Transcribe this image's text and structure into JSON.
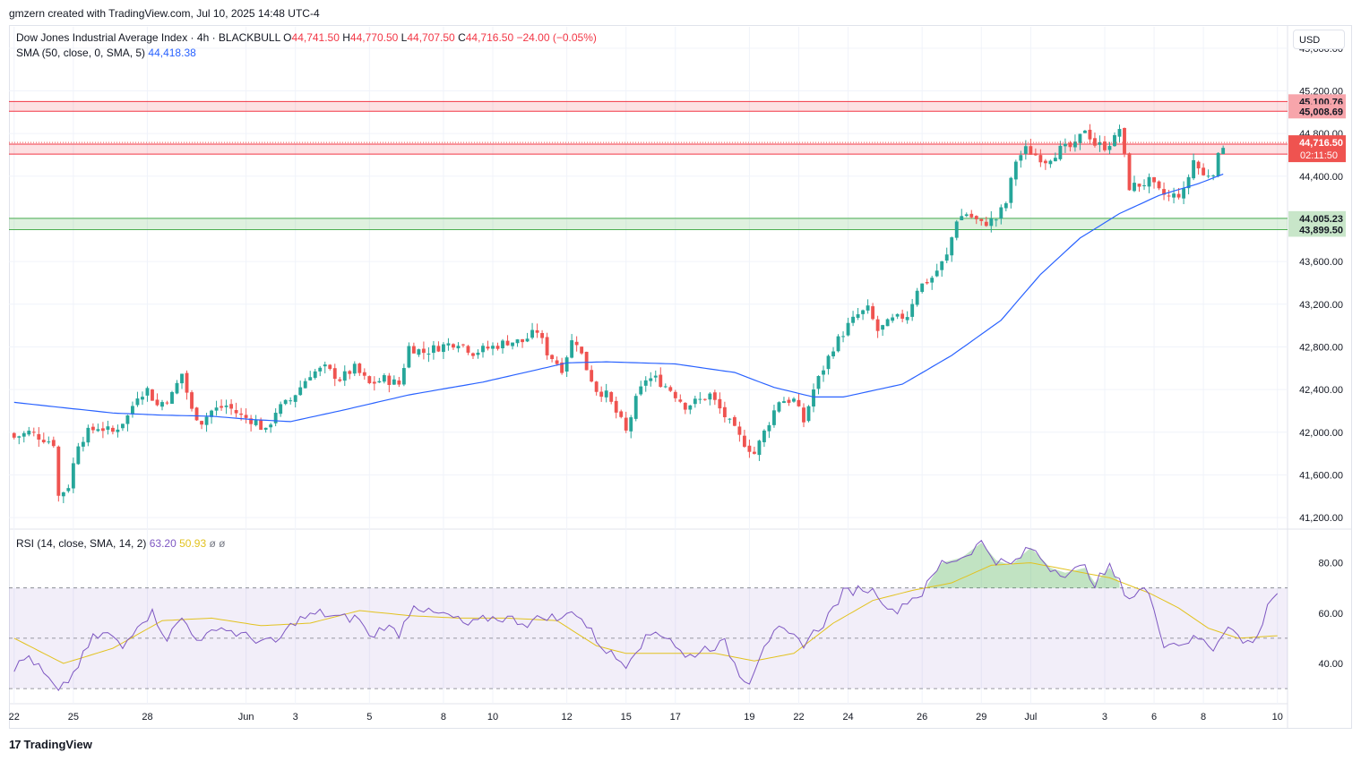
{
  "header": {
    "attribution": "gmzern created with TradingView.com, Jul 10, 2025 14:48 UTC-4"
  },
  "legend": {
    "symbol": "Dow Jones Industrial Average Index · 4h · BLACKBULL",
    "o_label": "O",
    "o_value": "44,741.50",
    "h_label": "H",
    "h_value": "44,770.50",
    "l_label": "L",
    "l_value": "44,707.50",
    "c_label": "C",
    "c_value": "44,716.50",
    "change": "−24.00 (−0.05%)",
    "sma_label": "SMA (50, close, 0, SMA, 5)",
    "sma_value": "44,418.38",
    "rsi_label": "RSI (14, close, SMA, 14, 2)",
    "rsi_value": "63.20",
    "rsi_ma_value": "50.93",
    "rsi_extra1": "ø",
    "rsi_extra2": "ø"
  },
  "currency": "USD",
  "footer": {
    "brand": "TradingView",
    "logo_glyph": "17"
  },
  "colors": {
    "up": "#26a69a",
    "down": "#ef5350",
    "sma": "#2962ff",
    "rsi": "#7e57c2",
    "rsi_ma": "#e2c21f",
    "resistance": "#f23645",
    "support": "#4caf50",
    "grid": "#f0f3fa"
  },
  "chart_data": [
    {
      "type": "candlestick",
      "title": "Dow Jones Industrial Average Index · 4h · BLACKBULL",
      "price_axis": {
        "range": [
          41100,
          45800
        ],
        "ticks": [
          {
            "v": 45600,
            "label": "45,600.00"
          },
          {
            "v": 45200,
            "label": "45,200.00"
          },
          {
            "v": 44800,
            "label": "44,800.00"
          },
          {
            "v": 44400,
            "label": "44,400.00"
          },
          {
            "v": 44000,
            "label": "44,000.00"
          },
          {
            "v": 43600,
            "label": "43,600.00"
          },
          {
            "v": 43200,
            "label": "43,200.00"
          },
          {
            "v": 42800,
            "label": "42,800.00"
          },
          {
            "v": 42400,
            "label": "42,400.00"
          },
          {
            "v": 42000,
            "label": "42,000.00"
          },
          {
            "v": 41600,
            "label": "41,600.00"
          },
          {
            "v": 41200,
            "label": "41,200.00"
          }
        ]
      },
      "time_axis": {
        "ticks": [
          {
            "i": 0,
            "label": "22"
          },
          {
            "i": 12,
            "label": "25"
          },
          {
            "i": 27,
            "label": "28"
          },
          {
            "i": 47,
            "label": "Jun"
          },
          {
            "i": 57,
            "label": "3"
          },
          {
            "i": 72,
            "label": "5"
          },
          {
            "i": 87,
            "label": "8"
          },
          {
            "i": 97,
            "label": "10"
          },
          {
            "i": 112,
            "label": "12"
          },
          {
            "i": 124,
            "label": "15"
          },
          {
            "i": 134,
            "label": "17"
          },
          {
            "i": 149,
            "label": "19"
          },
          {
            "i": 159,
            "label": "22"
          },
          {
            "i": 169,
            "label": "24"
          },
          {
            "i": 184,
            "label": "26"
          },
          {
            "i": 196,
            "label": "29"
          },
          {
            "i": 206,
            "label": "Jul"
          },
          {
            "i": 221,
            "label": "3"
          },
          {
            "i": 231,
            "label": "6"
          },
          {
            "i": 241,
            "label": "8"
          },
          {
            "i": 256,
            "label": "10"
          }
        ]
      },
      "zones": [
        {
          "kind": "resistance",
          "top": 45100.76,
          "bottom": 45008.69,
          "top_label": "45,100.76",
          "bottom_label": "45,008.69"
        },
        {
          "kind": "resistance",
          "top": 44700.4,
          "bottom": 44607.39,
          "top_label": "44,700.40",
          "bottom_label": "44,607.39"
        },
        {
          "kind": "support",
          "top": 44005.23,
          "bottom": 43899.5,
          "top_label": "44,005.23",
          "bottom_label": "43,899.50"
        }
      ],
      "last_price": {
        "value": 44716.5,
        "label": "44,716.50",
        "countdown": "02:11:50"
      },
      "anchors": [
        [
          0,
          41950
        ],
        [
          3,
          42000
        ],
        [
          8,
          41900
        ],
        [
          9,
          41400
        ],
        [
          11,
          41500
        ],
        [
          13,
          41900
        ],
        [
          15,
          42000
        ],
        [
          17,
          42050
        ],
        [
          20,
          42000
        ],
        [
          23,
          42150
        ],
        [
          25,
          42350
        ],
        [
          27,
          42400
        ],
        [
          29,
          42250
        ],
        [
          32,
          42350
        ],
        [
          34,
          42550
        ],
        [
          36,
          42200
        ],
        [
          38,
          42100
        ],
        [
          40,
          42200
        ],
        [
          43,
          42250
        ],
        [
          46,
          42150
        ],
        [
          49,
          42100
        ],
        [
          51,
          42000
        ],
        [
          53,
          42200
        ],
        [
          56,
          42300
        ],
        [
          60,
          42550
        ],
        [
          63,
          42600
        ],
        [
          66,
          42500
        ],
        [
          69,
          42600
        ],
        [
          72,
          42450
        ],
        [
          75,
          42500
        ],
        [
          78,
          42450
        ],
        [
          80,
          42800
        ],
        [
          83,
          42750
        ],
        [
          86,
          42800
        ],
        [
          90,
          42850
        ],
        [
          93,
          42750
        ],
        [
          97,
          42800
        ],
        [
          100,
          42850
        ],
        [
          103,
          42850
        ],
        [
          106,
          42950
        ],
        [
          108,
          42750
        ],
        [
          111,
          42600
        ],
        [
          113,
          42850
        ],
        [
          114,
          42850
        ],
        [
          116,
          42600
        ],
        [
          118,
          42400
        ],
        [
          120,
          42350
        ],
        [
          123,
          42100
        ],
        [
          124,
          42000
        ],
        [
          126,
          42300
        ],
        [
          128,
          42500
        ],
        [
          130,
          42500
        ],
        [
          133,
          42400
        ],
        [
          136,
          42250
        ],
        [
          139,
          42300
        ],
        [
          141,
          42350
        ],
        [
          144,
          42150
        ],
        [
          147,
          41950
        ],
        [
          150,
          41800
        ],
        [
          153,
          42100
        ],
        [
          155,
          42300
        ],
        [
          158,
          42300
        ],
        [
          160,
          42100
        ],
        [
          162,
          42400
        ],
        [
          164,
          42600
        ],
        [
          166,
          42800
        ],
        [
          169,
          43000
        ],
        [
          171,
          43100
        ],
        [
          173,
          43150
        ],
        [
          175,
          42950
        ],
        [
          178,
          43050
        ],
        [
          181,
          43100
        ],
        [
          183,
          43350
        ],
        [
          186,
          43450
        ],
        [
          189,
          43650
        ],
        [
          191,
          44000
        ],
        [
          193,
          44050
        ],
        [
          196,
          43950
        ],
        [
          199,
          44000
        ],
        [
          201,
          44150
        ],
        [
          203,
          44550
        ],
        [
          205,
          44650
        ],
        [
          207,
          44600
        ],
        [
          209,
          44550
        ],
        [
          212,
          44650
        ],
        [
          215,
          44680
        ],
        [
          217,
          44850
        ],
        [
          219,
          44700
        ],
        [
          221,
          44680
        ],
        [
          223,
          44750
        ],
        [
          224,
          44850
        ],
        [
          226,
          44300
        ],
        [
          228,
          44320
        ],
        [
          230,
          44350
        ],
        [
          232,
          44250
        ],
        [
          234,
          44200
        ],
        [
          237,
          44250
        ],
        [
          239,
          44550
        ],
        [
          241,
          44400
        ],
        [
          243,
          44450
        ],
        [
          245,
          44700
        ]
      ],
      "sma_anchors": [
        [
          0,
          42280
        ],
        [
          10,
          42230
        ],
        [
          20,
          42180
        ],
        [
          30,
          42160
        ],
        [
          40,
          42150
        ],
        [
          48,
          42120
        ],
        [
          56,
          42100
        ],
        [
          66,
          42200
        ],
        [
          80,
          42350
        ],
        [
          95,
          42470
        ],
        [
          112,
          42650
        ],
        [
          120,
          42660
        ],
        [
          134,
          42640
        ],
        [
          146,
          42560
        ],
        [
          154,
          42420
        ],
        [
          162,
          42330
        ],
        [
          168,
          42330
        ],
        [
          180,
          42450
        ],
        [
          190,
          42720
        ],
        [
          200,
          43050
        ],
        [
          208,
          43480
        ],
        [
          216,
          43820
        ],
        [
          224,
          44050
        ],
        [
          232,
          44220
        ],
        [
          240,
          44330
        ],
        [
          245,
          44420
        ]
      ]
    },
    {
      "type": "line",
      "title": "RSI (14, close, SMA, 14, 2)",
      "ylim": [
        24,
        93
      ],
      "ticks": [
        {
          "v": 80,
          "label": "80.00"
        },
        {
          "v": 60,
          "label": "60.00"
        },
        {
          "v": 40,
          "label": "40.00"
        }
      ],
      "bands": {
        "upper": 70,
        "middle": 50,
        "lower": 30
      },
      "series": [
        {
          "name": "RSI",
          "anchors": [
            [
              0,
              38
            ],
            [
              3,
              43
            ],
            [
              8,
              31
            ],
            [
              9,
              28
            ],
            [
              12,
              36
            ],
            [
              16,
              50
            ],
            [
              19,
              52
            ],
            [
              22,
              46
            ],
            [
              25,
              56
            ],
            [
              28,
              60
            ],
            [
              31,
              50
            ],
            [
              34,
              58
            ],
            [
              38,
              48
            ],
            [
              41,
              55
            ],
            [
              45,
              52
            ],
            [
              48,
              50
            ],
            [
              53,
              48
            ],
            [
              57,
              57
            ],
            [
              62,
              60
            ],
            [
              66,
              58
            ],
            [
              70,
              58
            ],
            [
              72,
              50
            ],
            [
              75,
              55
            ],
            [
              78,
              52
            ],
            [
              81,
              64
            ],
            [
              84,
              60
            ],
            [
              88,
              59
            ],
            [
              92,
              55
            ],
            [
              96,
              58
            ],
            [
              100,
              58
            ],
            [
              104,
              56
            ],
            [
              108,
              59
            ],
            [
              111,
              57
            ],
            [
              113,
              62
            ],
            [
              116,
              55
            ],
            [
              119,
              47
            ],
            [
              122,
              42
            ],
            [
              124,
              40
            ],
            [
              126,
              46
            ],
            [
              130,
              53
            ],
            [
              133,
              50
            ],
            [
              136,
              42
            ],
            [
              140,
              46
            ],
            [
              144,
              48
            ],
            [
              147,
              36
            ],
            [
              149,
              33
            ],
            [
              152,
              48
            ],
            [
              155,
              53
            ],
            [
              158,
              50
            ],
            [
              160,
              48
            ],
            [
              164,
              56
            ],
            [
              168,
              68
            ],
            [
              172,
              70
            ],
            [
              175,
              68
            ],
            [
              178,
              60
            ],
            [
              181,
              65
            ],
            [
              184,
              68
            ],
            [
              188,
              80
            ],
            [
              192,
              82
            ],
            [
              196,
              88
            ],
            [
              199,
              81
            ],
            [
              202,
              79
            ],
            [
              206,
              86
            ],
            [
              210,
              78
            ],
            [
              213,
              76
            ],
            [
              217,
              78
            ],
            [
              219,
              72
            ],
            [
              222,
              78
            ],
            [
              226,
              66
            ],
            [
              229,
              70
            ],
            [
              231,
              62
            ],
            [
              233,
              48
            ],
            [
              236,
              48
            ],
            [
              240,
              50
            ],
            [
              243,
              46
            ],
            [
              246,
              56
            ],
            [
              249,
              48
            ],
            [
              252,
              50
            ],
            [
              254,
              64
            ],
            [
              256,
              68
            ]
          ]
        },
        {
          "name": "RSI-based MA",
          "anchors": [
            [
              0,
              50
            ],
            [
              10,
              40
            ],
            [
              20,
              46
            ],
            [
              30,
              57
            ],
            [
              40,
              58
            ],
            [
              50,
              55
            ],
            [
              60,
              56
            ],
            [
              70,
              61
            ],
            [
              80,
              59
            ],
            [
              90,
              58
            ],
            [
              100,
              58
            ],
            [
              110,
              57
            ],
            [
              118,
              47
            ],
            [
              124,
              44
            ],
            [
              134,
              44
            ],
            [
              142,
              44
            ],
            [
              150,
              41
            ],
            [
              158,
              44
            ],
            [
              166,
              56
            ],
            [
              174,
              65
            ],
            [
              182,
              69
            ],
            [
              190,
              72
            ],
            [
              198,
              79
            ],
            [
              206,
              80
            ],
            [
              214,
              77
            ],
            [
              222,
              74
            ],
            [
              230,
              68
            ],
            [
              236,
              62
            ],
            [
              242,
              54
            ],
            [
              248,
              50
            ],
            [
              256,
              51
            ]
          ]
        }
      ]
    }
  ]
}
